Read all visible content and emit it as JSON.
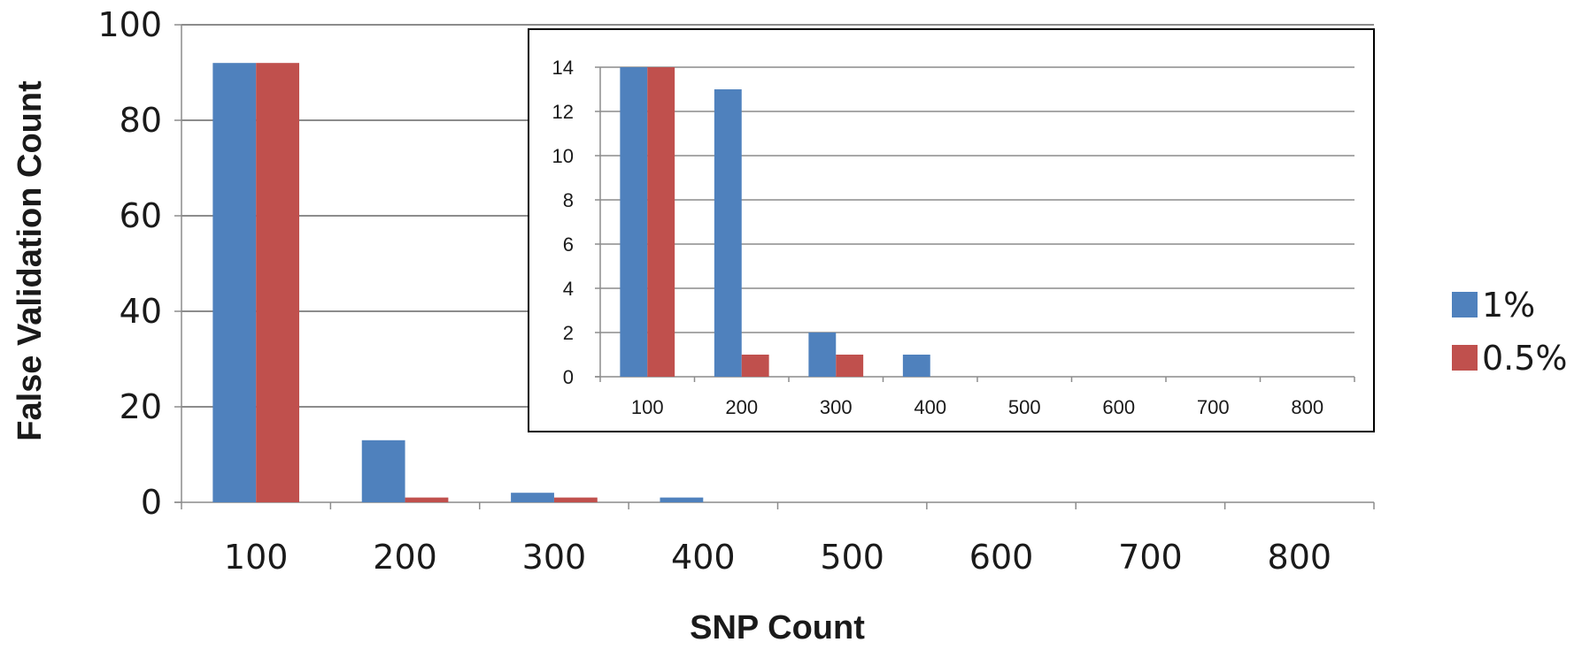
{
  "chart_data": [
    {
      "id": "main",
      "type": "bar",
      "categories": [
        "100",
        "200",
        "300",
        "400",
        "500",
        "600",
        "700",
        "800"
      ],
      "series": [
        {
          "name": "1%",
          "color": "#4f81bd",
          "values": [
            92,
            13,
            2,
            1,
            0,
            0,
            0,
            0
          ]
        },
        {
          "name": "0.5%",
          "color": "#c0504d",
          "values": [
            92,
            1,
            1,
            0,
            0,
            0,
            0,
            0
          ]
        }
      ],
      "yticks": [
        0,
        20,
        40,
        60,
        80,
        100
      ],
      "ylim": [
        0,
        100
      ],
      "xlabel": "SNP Count",
      "ylabel": "False Validation Count",
      "grid": true,
      "legend_position": "right"
    },
    {
      "id": "inset",
      "type": "bar",
      "categories": [
        "100",
        "200",
        "300",
        "400",
        "500",
        "600",
        "700",
        "800"
      ],
      "series": [
        {
          "name": "1%",
          "color": "#4f81bd",
          "values": [
            14,
            13,
            2,
            1,
            0,
            0,
            0,
            0
          ]
        },
        {
          "name": "0.5%",
          "color": "#c0504d",
          "values": [
            14,
            1,
            1,
            0,
            0,
            0,
            0,
            0
          ]
        }
      ],
      "yticks": [
        0,
        2,
        4,
        6,
        8,
        10,
        12,
        14
      ],
      "ylim": [
        0,
        14
      ],
      "grid": true
    }
  ]
}
